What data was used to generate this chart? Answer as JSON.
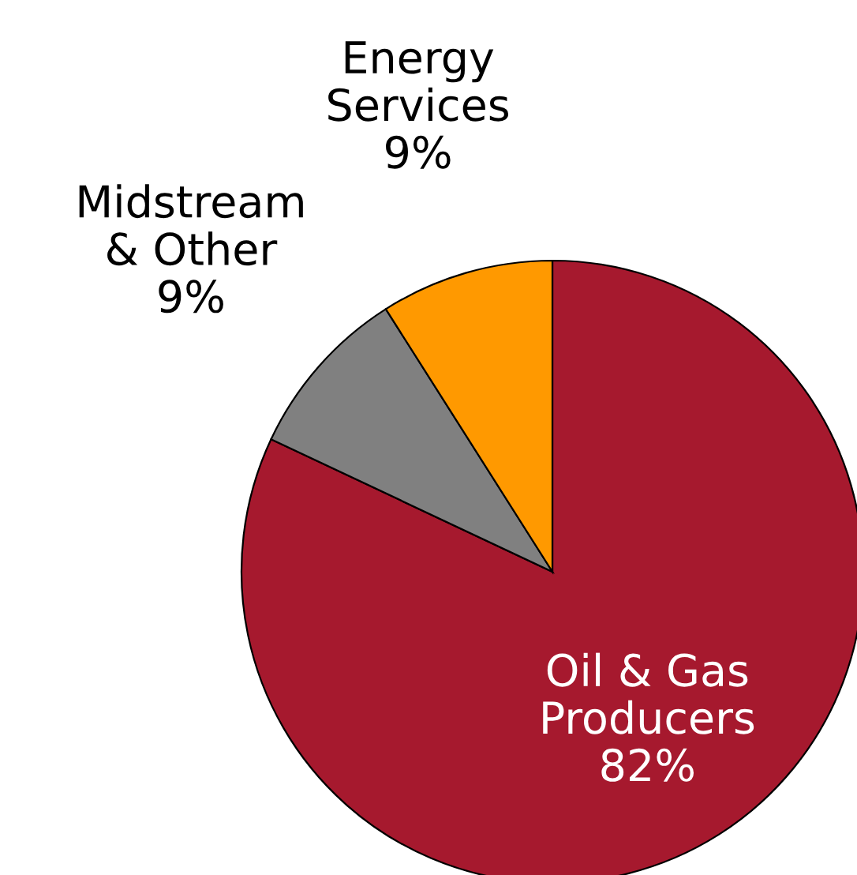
{
  "chart_data": {
    "type": "pie",
    "categories": [
      "Oil & Gas\nProducers",
      "Midstream\n& Other",
      "Energy\nServices"
    ],
    "values": [
      82,
      9,
      9
    ],
    "value_labels": [
      "82%",
      "9%",
      "9%"
    ],
    "colors": [
      "#a6192e",
      "#808080",
      "#ff9900"
    ],
    "legend": false
  }
}
